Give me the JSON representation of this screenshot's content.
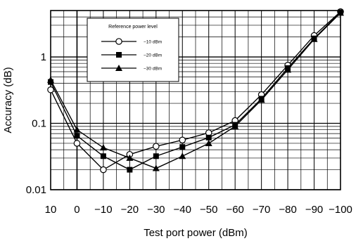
{
  "chart_data": {
    "type": "line",
    "xlabel": "Test port power (dBm)",
    "ylabel": "Accuracy (dB)",
    "x": [
      10,
      0,
      -10,
      -20,
      -30,
      -40,
      -50,
      -60,
      -70,
      -80,
      -90,
      -100
    ],
    "x_tick_labels": [
      "10",
      "0",
      "−10",
      "−20",
      "−30",
      "−40",
      "−50",
      "−60",
      "−70",
      "−80",
      "−90",
      "−100"
    ],
    "y_tick_labels": [
      "0.01",
      "0.1",
      "1"
    ],
    "yscale": "log",
    "ylim": [
      0.01,
      5
    ],
    "xlim": [
      10,
      -100
    ],
    "grid": true,
    "legend": {
      "title": "Reference power level",
      "placement": "top-left"
    },
    "series": [
      {
        "name": "−10 dBm",
        "marker": "circle-open",
        "x": [
          10,
          0,
          -10,
          -20,
          -30,
          -40,
          -50,
          -60,
          -70,
          -80,
          -90,
          -100
        ],
        "values": [
          0.32,
          0.05,
          0.02,
          0.034,
          0.045,
          0.056,
          0.072,
          0.11,
          0.27,
          0.75,
          2.1,
          4.8
        ]
      },
      {
        "name": "−20 dBm",
        "marker": "square-filled",
        "x": [
          10,
          0,
          -10,
          -20,
          -30,
          -40,
          -50,
          -60,
          -70,
          -80,
          -90,
          -100
        ],
        "values": [
          0.42,
          0.065,
          0.032,
          0.02,
          0.032,
          0.044,
          0.061,
          0.095,
          0.235,
          0.68,
          1.9,
          4.7
        ]
      },
      {
        "name": "−30 dBm",
        "marker": "triangle-filled",
        "x": [
          10,
          0,
          -10,
          -20,
          -30,
          -40,
          -50,
          -60,
          -70,
          -80,
          -90,
          -100
        ],
        "values": [
          0.45,
          0.08,
          0.043,
          0.03,
          0.021,
          0.032,
          0.05,
          0.09,
          0.225,
          0.64,
          1.85,
          4.6
        ]
      }
    ]
  }
}
